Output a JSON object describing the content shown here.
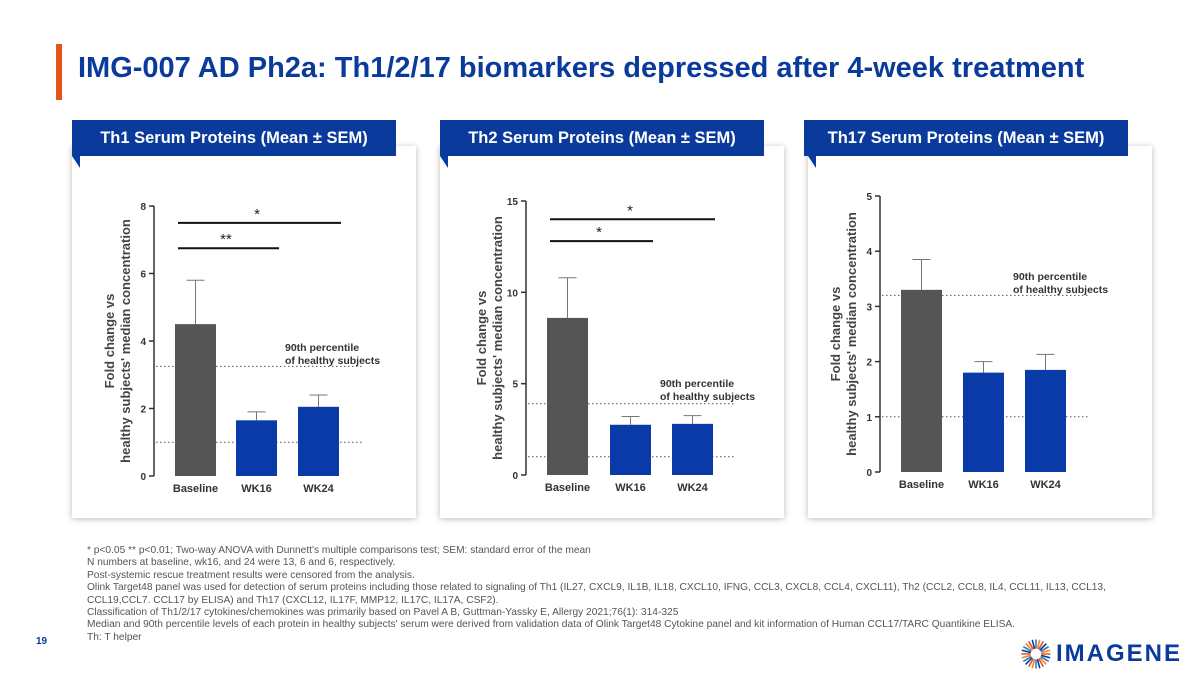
{
  "slide": {
    "title": "IMG-007 AD Ph2a: Th1/2/17 biomarkers depressed after 4-week treatment",
    "page_number": "19",
    "accent_color": "#e8521f",
    "title_color": "#0a3a9c"
  },
  "footnotes": [
    "* p<0.05 ** p<0.01; Two-way ANOVA with Dunnett's multiple comparisons test; SEM: standard error of the mean",
    "N numbers at baseline, wk16, and 24 were 13, 6 and 6, respectively.",
    "Post-systemic rescue treatment results were censored from the analysis.",
    "Olink Target48 panel was used for detection of serum proteins including those related to signaling of Th1 (IL27, CXCL9, IL1B, IL18, CXCL10, IFNG, CCL3, CXCL8, CCL4, CXCL11), Th2 (CCL2, CCL8, IL4, CCL11, IL13, CCL13, CCL19,CCL7. CCL17 by ELISA) and Th17 (CXCL12, IL17F, MMP12, IL17C, IL17A, CSF2).",
    "Classification of Th1/2/17 cytokines/chemokines was primarily based on Pavel A B, Guttman-Yassky E, Allergy 2021;76(1): 314-325",
    "Median and 90th percentile levels of each protein in healthy subjects' serum were derived from validation data of Olink Target48 Cytokine panel and kit information of Human CCL17/TARC Quantikine ELISA.",
    "Th: T helper"
  ],
  "logo": {
    "text": "IMAGENE",
    "icon": "sunburst-logo-icon"
  },
  "colors": {
    "baseline_bar": "#555555",
    "treatment_bar": "#0a3aa8",
    "header": "#0a3a9c"
  },
  "chart_data": [
    {
      "type": "bar",
      "panel_title": "Th1 Serum Proteins (Mean ± SEM)",
      "categories": [
        "Baseline",
        "WK16",
        "WK24"
      ],
      "values": [
        4.5,
        1.65,
        2.05
      ],
      "errors": [
        1.3,
        0.25,
        0.35
      ],
      "ylabel": [
        "Fold change vs",
        "healthy subjects' median concentration"
      ],
      "ylim": [
        0,
        8
      ],
      "yticks": [
        0,
        2,
        4,
        6,
        8
      ],
      "reference_lines": [
        {
          "value": 3.25,
          "label": [
            "90th percentile",
            "of healthy subjects"
          ]
        },
        {
          "value": 1.0,
          "label": []
        }
      ],
      "significance": [
        {
          "from": "Baseline",
          "to": "WK24",
          "y": 7.5,
          "label": "*"
        },
        {
          "from": "Baseline",
          "to": "WK16",
          "y": 6.75,
          "label": "**"
        }
      ]
    },
    {
      "type": "bar",
      "panel_title": "Th2 Serum Proteins (Mean ± SEM)",
      "categories": [
        "Baseline",
        "WK16",
        "WK24"
      ],
      "values": [
        8.6,
        2.75,
        2.8
      ],
      "errors": [
        2.2,
        0.45,
        0.45
      ],
      "ylabel": [
        "Fold change vs",
        "healthy subjects' median concentration"
      ],
      "ylim": [
        0,
        15
      ],
      "yticks": [
        0,
        5,
        10,
        15
      ],
      "reference_lines": [
        {
          "value": 3.9,
          "label": [
            "90th percentile",
            "of healthy subjects"
          ]
        },
        {
          "value": 1.0,
          "label": []
        }
      ],
      "significance": [
        {
          "from": "Baseline",
          "to": "WK24",
          "y": 14.0,
          "label": "*"
        },
        {
          "from": "Baseline",
          "to": "WK16",
          "y": 12.8,
          "label": "*"
        }
      ]
    },
    {
      "type": "bar",
      "panel_title": "Th17 Serum Proteins (Mean ± SEM)",
      "categories": [
        "Baseline",
        "WK16",
        "WK24"
      ],
      "values": [
        3.3,
        1.8,
        1.85
      ],
      "errors": [
        0.55,
        0.2,
        0.28
      ],
      "ylabel": [
        "Fold change vs",
        "healthy subjects' median concentration"
      ],
      "ylim": [
        0,
        5
      ],
      "yticks": [
        0,
        1,
        2,
        3,
        4,
        5
      ],
      "reference_lines": [
        {
          "value": 3.2,
          "label": [
            "90th percentile",
            "of healthy subjects"
          ]
        },
        {
          "value": 1.0,
          "label": []
        }
      ],
      "significance": []
    }
  ]
}
